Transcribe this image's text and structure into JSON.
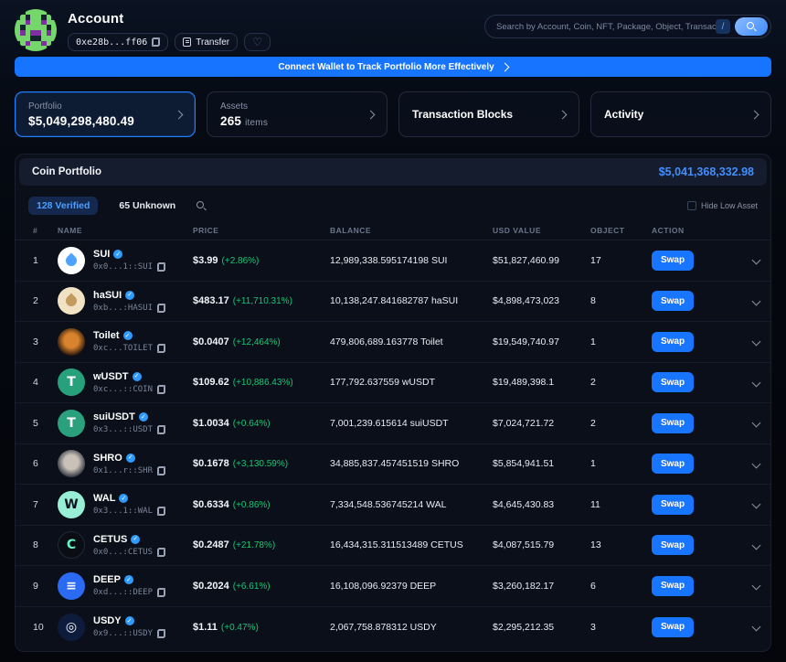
{
  "header": {
    "title": "Account",
    "address_short": "0xe28b...ff06",
    "transfer_label": "Transfer",
    "avatar": {
      "palette": {
        "d": "#17222f",
        "g": "#74d66b",
        "p": "#7e2fa0"
      },
      "pixels": [
        "ddggggdd",
        "dgdggdgd",
        "ggpggpgg",
        "gdggggdg",
        "gpgppgpg",
        "gggddggg",
        "dgpggpgd",
        "ddggggdd"
      ]
    },
    "search": {
      "placeholder": "Search by Account, Coin, NFT, Package, Object, Transaction, S...",
      "shortcut": "/"
    }
  },
  "banner": {
    "text": "Connect Wallet to Track Portfolio More Effectively"
  },
  "summary_cards": {
    "portfolio": {
      "label": "Portfolio",
      "value": "$5,049,298,480.49"
    },
    "assets": {
      "label": "Assets",
      "value": "265",
      "suffix": "items"
    },
    "transaction_blocks": {
      "label": "Transaction Blocks"
    },
    "activity": {
      "label": "Activity"
    }
  },
  "portfolio_panel": {
    "title": "Coin Portfolio",
    "total_value": "$5,041,368,332.98",
    "tabs": {
      "verified": "128 Verified",
      "unknown": "65 Unknown"
    },
    "hide_low_asset_label": "Hide Low Asset",
    "table": {
      "columns": {
        "rank": "#",
        "name": "NAME",
        "price": "PRICE",
        "balance": "BALANCE",
        "usd_value": "USD VALUE",
        "object": "OBJECT",
        "action": "ACTION"
      },
      "swap_label": "Swap",
      "rows": [
        {
          "rank": "1",
          "name": "SUI",
          "address": "0x0...1::SUI",
          "price": "$3.99",
          "change": "(+2.86%)",
          "balance": "12,989,338.595174198 SUI",
          "usd_value": "$51,827,460.99",
          "objects": "17",
          "icon": {
            "kind": "drop",
            "bg": "#ffffff",
            "fg": "#4da2ff"
          }
        },
        {
          "rank": "2",
          "name": "haSUI",
          "address": "0xb...:HASUI",
          "price": "$483.17",
          "change": "(+11,710.31%)",
          "balance": "10,138,247.841682787 haSUI",
          "usd_value": "$4,898,473,023",
          "objects": "8",
          "icon": {
            "kind": "drop",
            "bg": "#f1e2c3",
            "fg": "#c39a5f"
          }
        },
        {
          "rank": "3",
          "name": "Toilet",
          "address": "0xc...TOILET",
          "price": "$0.0407",
          "change": "(+12,464%)",
          "balance": "479,806,689.163778 Toilet",
          "usd_value": "$19,549,740.97",
          "objects": "1",
          "icon": {
            "kind": "photo",
            "bg": "#241408",
            "accent": "#d9832e"
          }
        },
        {
          "rank": "4",
          "name": "wUSDT",
          "address": "0xc...::COIN",
          "price": "$109.62",
          "change": "(+10,886.43%)",
          "balance": "177,792.637559 wUSDT",
          "usd_value": "$19,489,398.1",
          "objects": "2",
          "icon": {
            "kind": "text",
            "bg": "#26a17b",
            "fg": "#ffffff",
            "glyph": "T"
          }
        },
        {
          "rank": "5",
          "name": "suiUSDT",
          "address": "0x3...::USDT",
          "price": "$1.0034",
          "change": "(+0.64%)",
          "balance": "7,001,239.615614 suiUSDT",
          "usd_value": "$7,024,721.72",
          "objects": "2",
          "icon": {
            "kind": "text",
            "bg": "#2ba07c",
            "fg": "#ffffff",
            "glyph": "T"
          }
        },
        {
          "rank": "6",
          "name": "SHRO",
          "address": "0x1...r::SHR",
          "price": "$0.1678",
          "change": "(+3,130.59%)",
          "balance": "34,885,837.457451519 SHRO",
          "usd_value": "$5,854,941.51",
          "objects": "1",
          "icon": {
            "kind": "photo",
            "bg": "#2c313c",
            "accent": "#c9c2b8"
          }
        },
        {
          "rank": "7",
          "name": "WAL",
          "address": "0x3...1::WAL",
          "price": "$0.6334",
          "change": "(+0.86%)",
          "balance": "7,334,548.536745214 WAL",
          "usd_value": "$4,645,430.83",
          "objects": "11",
          "icon": {
            "kind": "text",
            "bg": "#99efd6",
            "fg": "#0c1220",
            "glyph": "W"
          }
        },
        {
          "rank": "8",
          "name": "CETUS",
          "address": "0x0...:CETUS",
          "price": "$0.2487",
          "change": "(+21.78%)",
          "balance": "16,434,315.311513489 CETUS",
          "usd_value": "$4,087,515.79",
          "objects": "13",
          "icon": {
            "kind": "text",
            "bg": "#0a0e14",
            "fg": "#66f2c3",
            "glyph": "C"
          }
        },
        {
          "rank": "9",
          "name": "DEEP",
          "address": "0xd...::DEEP",
          "price": "$0.2024",
          "change": "(+6.61%)",
          "balance": "16,108,096.92379 DEEP",
          "usd_value": "$3,260,182.17",
          "objects": "6",
          "icon": {
            "kind": "text",
            "bg": "#2b6bf3",
            "fg": "#ffffff",
            "glyph": "≡"
          }
        },
        {
          "rank": "10",
          "name": "USDY",
          "address": "0x9...::USDY",
          "price": "$1.11",
          "change": "(+0.47%)",
          "balance": "2,067,758.878312 USDY",
          "usd_value": "$2,295,212.35",
          "objects": "3",
          "icon": {
            "kind": "text",
            "bg": "#0d1b3d",
            "fg": "#ffffff",
            "glyph": "◎"
          }
        }
      ]
    }
  }
}
